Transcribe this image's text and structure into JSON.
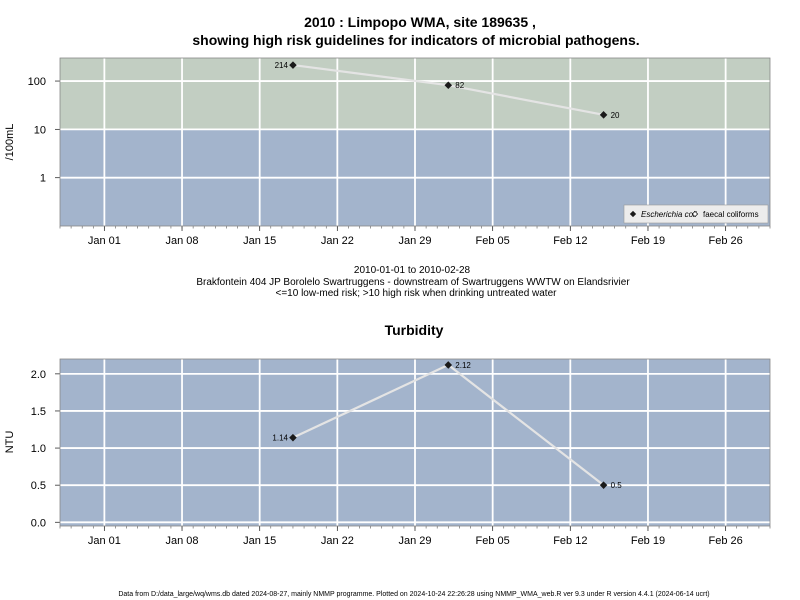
{
  "chart_data": [
    {
      "type": "line",
      "title_line1": "2010 : Limpopo WMA, site 189635 ,",
      "title_line2": "showing high risk guidelines for indicators of microbial pathogens.",
      "ylabel": "/100mL",
      "yscale": "log",
      "ylim": [
        0.1,
        300
      ],
      "yticks": [
        1,
        10,
        100
      ],
      "ytick_labels": [
        "1",
        "10",
        "100"
      ],
      "xlim": [
        "2009-12-28",
        "2010-03-02"
      ],
      "xticks": [
        "2010-01-01",
        "2010-01-08",
        "2010-01-15",
        "2010-01-22",
        "2010-01-29",
        "2010-02-05",
        "2010-02-12",
        "2010-02-19",
        "2010-02-26"
      ],
      "xtick_labels": [
        "Jan 01",
        "Jan 08",
        "Jan 15",
        "Jan 22",
        "Jan 29",
        "Feb 05",
        "Feb 12",
        "Feb 19",
        "Feb 26"
      ],
      "bands": [
        {
          "from": 10,
          "to": 300,
          "color": "#c2cec2",
          "meaning": "high risk"
        },
        {
          "from": 0.1,
          "to": 10,
          "color": "#a3b4cc",
          "meaning": "low-med risk"
        }
      ],
      "grid": true,
      "legend_position": "bottom-right",
      "legend": [
        {
          "label": "Escherichia coli",
          "marker": "filled-diamond",
          "italic": true
        },
        {
          "label": "faecal coliforms",
          "marker": "open-diamond",
          "italic": false
        }
      ],
      "series": [
        {
          "name": "Escherichia coli",
          "x": [
            "2010-01-18",
            "2010-02-01",
            "2010-02-15"
          ],
          "y": [
            214,
            82,
            20
          ],
          "labels": [
            "214",
            "82",
            "20"
          ]
        }
      ]
    },
    {
      "type": "line",
      "title": "Turbidity",
      "ylabel": "NTU",
      "yscale": "linear",
      "ylim": [
        -0.05,
        2.2
      ],
      "yticks": [
        0,
        0.5,
        1,
        1.5,
        2
      ],
      "ytick_labels": [
        "0.0",
        "0.5",
        "1.0",
        "1.5",
        "2.0"
      ],
      "xlim": [
        "2009-12-28",
        "2010-03-02"
      ],
      "xticks": [
        "2010-01-01",
        "2010-01-08",
        "2010-01-15",
        "2010-01-22",
        "2010-01-29",
        "2010-02-05",
        "2010-02-12",
        "2010-02-19",
        "2010-02-26"
      ],
      "xtick_labels": [
        "Jan 01",
        "Jan 08",
        "Jan 15",
        "Jan 22",
        "Jan 29",
        "Feb 05",
        "Feb 12",
        "Feb 19",
        "Feb 26"
      ],
      "background": "#a3b4cc",
      "grid": true,
      "series": [
        {
          "x": [
            "2010-01-18",
            "2010-02-01",
            "2010-02-15"
          ],
          "y": [
            1.14,
            2.12,
            0.5
          ],
          "labels": [
            "1.14",
            "2.12",
            "0.5"
          ]
        }
      ]
    }
  ],
  "caption": {
    "date_range": "2010-01-01 to 2010-02-28",
    "site": "Brakfontein 404 JP Borolelo Swartruggens - downstream of Swartruggens WWTW on Elandsrivier",
    "risk_note": "<=10 low-med risk; >10 high risk when drinking untreated water"
  },
  "footer": "Data from D:/data_large/wq/wms.db dated 2024-08-27, mainly NMMP programme. Plotted on 2024-10-24 22:26:28 using NMMP_WMA_web.R ver 9.3 under R version 4.4.1 (2024-06-14 ucrt)"
}
